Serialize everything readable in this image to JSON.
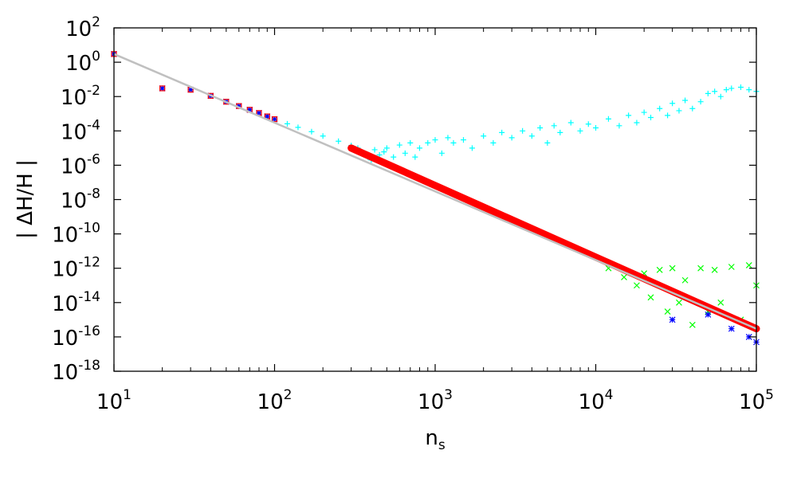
{
  "chart_data": {
    "type": "scatter",
    "title": "",
    "xlabel": {
      "base": "n",
      "sub": "s"
    },
    "ylabel": "| ΔH/H |",
    "x_scale": "log",
    "y_scale": "log",
    "xlim": [
      10,
      100000
    ],
    "ylim": [
      1e-18,
      100
    ],
    "grid": false,
    "legend": "none",
    "x_ticks": [
      {
        "base": "10",
        "exp": "1",
        "value": 10
      },
      {
        "base": "10",
        "exp": "2",
        "value": 100
      },
      {
        "base": "10",
        "exp": "3",
        "value": 1000
      },
      {
        "base": "10",
        "exp": "4",
        "value": 10000
      },
      {
        "base": "10",
        "exp": "5",
        "value": 100000
      }
    ],
    "y_ticks": [
      {
        "base": "10",
        "exp": "2",
        "value": 100
      },
      {
        "base": "10",
        "exp": "0",
        "value": 1
      },
      {
        "base": "10",
        "exp": "-2",
        "value": 0.01
      },
      {
        "base": "10",
        "exp": "-4",
        "value": 0.0001
      },
      {
        "base": "10",
        "exp": "-6",
        "value": 1e-06
      },
      {
        "base": "10",
        "exp": "-8",
        "value": 1e-08
      },
      {
        "base": "10",
        "exp": "-10",
        "value": 1e-10
      },
      {
        "base": "10",
        "exp": "-12",
        "value": 1e-12
      },
      {
        "base": "10",
        "exp": "-14",
        "value": 1e-14
      },
      {
        "base": "10",
        "exp": "-16",
        "value": 1e-16
      },
      {
        "base": "10",
        "exp": "-18",
        "value": 1e-18
      }
    ],
    "series": [
      {
        "marker": "plus",
        "color": "#00ffff",
        "points": [
          [
            10,
            3
          ],
          [
            20,
            0.03
          ],
          [
            30,
            0.025
          ],
          [
            40,
            0.011
          ],
          [
            50,
            0.005
          ],
          [
            60,
            0.0028
          ],
          [
            70,
            0.0017
          ],
          [
            80,
            0.0011
          ],
          [
            90,
            0.0007
          ],
          [
            100,
            0.00048
          ],
          [
            120,
            0.00026
          ],
          [
            140,
            0.00016
          ],
          [
            170,
            9e-05
          ],
          [
            200,
            5e-05
          ],
          [
            250,
            2.5e-05
          ],
          [
            300,
            1.4e-05
          ],
          [
            330,
            1e-05
          ],
          [
            350,
            5e-06
          ],
          [
            380,
            3e-06
          ],
          [
            400,
            2e-06
          ],
          [
            420,
            8e-06
          ],
          [
            450,
            4e-06
          ],
          [
            480,
            6e-06
          ],
          [
            500,
            1e-05
          ],
          [
            550,
            3e-06
          ],
          [
            600,
            1.5e-05
          ],
          [
            650,
            5e-06
          ],
          [
            700,
            2e-05
          ],
          [
            750,
            3e-06
          ],
          [
            800,
            1e-05
          ],
          [
            900,
            2e-05
          ],
          [
            1000,
            3e-05
          ],
          [
            1100,
            5e-06
          ],
          [
            1200,
            4e-05
          ],
          [
            1300,
            2e-05
          ],
          [
            1500,
            3e-05
          ],
          [
            1700,
            1e-05
          ],
          [
            2000,
            5e-05
          ],
          [
            2300,
            2e-05
          ],
          [
            2600,
            8e-05
          ],
          [
            3000,
            4e-05
          ],
          [
            3500,
            0.0001
          ],
          [
            4000,
            5e-05
          ],
          [
            4500,
            0.00015
          ],
          [
            5000,
            2e-05
          ],
          [
            5500,
            0.0002
          ],
          [
            6000,
            8e-05
          ],
          [
            7000,
            0.0003
          ],
          [
            8000,
            0.0001
          ],
          [
            9000,
            0.00025
          ],
          [
            10000,
            0.00015
          ],
          [
            12000,
            0.0005
          ],
          [
            14000,
            0.0002
          ],
          [
            16000,
            0.0008
          ],
          [
            18000,
            0.0003
          ],
          [
            20000,
            0.0012
          ],
          [
            22000,
            0.0006
          ],
          [
            25000,
            0.002
          ],
          [
            28000,
            0.0008
          ],
          [
            30000,
            0.004
          ],
          [
            33000,
            0.0015
          ],
          [
            36000,
            0.006
          ],
          [
            40000,
            0.002
          ],
          [
            45000,
            0.005
          ],
          [
            50000,
            0.015
          ],
          [
            55000,
            0.02
          ],
          [
            60000,
            0.01
          ],
          [
            65000,
            0.025
          ],
          [
            70000,
            0.03
          ],
          [
            80000,
            0.035
          ],
          [
            90000,
            0.025
          ],
          [
            100000,
            0.02
          ]
        ]
      },
      {
        "marker": "cross",
        "color": "#00ff00",
        "points": [
          [
            12000,
            1e-12
          ],
          [
            15000,
            3e-13
          ],
          [
            18000,
            1e-13
          ],
          [
            20000,
            5e-13
          ],
          [
            22000,
            2e-14
          ],
          [
            25000,
            8e-13
          ],
          [
            28000,
            3e-15
          ],
          [
            30000,
            1e-12
          ],
          [
            33000,
            1e-14
          ],
          [
            36000,
            2e-13
          ],
          [
            40000,
            5e-16
          ],
          [
            45000,
            1e-12
          ],
          [
            50000,
            3e-15
          ],
          [
            55000,
            8e-13
          ],
          [
            60000,
            1e-14
          ],
          [
            70000,
            1.2e-12
          ],
          [
            80000,
            1e-15
          ],
          [
            90000,
            1.5e-12
          ],
          [
            100000,
            1e-13
          ]
        ]
      },
      {
        "marker": "star",
        "color": "#0000ff",
        "points": [
          [
            10,
            3
          ],
          [
            20,
            0.03
          ],
          [
            30,
            0.025
          ],
          [
            40,
            0.011
          ],
          [
            50,
            0.005
          ],
          [
            60,
            0.0028
          ],
          [
            70,
            0.0017
          ],
          [
            80,
            0.0011
          ],
          [
            90,
            0.0007
          ],
          [
            100,
            0.00048
          ],
          [
            30000,
            1e-15
          ],
          [
            50000,
            2e-15
          ],
          [
            70000,
            3e-16
          ],
          [
            90000,
            1e-16
          ],
          [
            100000,
            5e-17
          ]
        ]
      },
      {
        "marker": "square",
        "color": "#ff0000",
        "points": [
          [
            10,
            3
          ],
          [
            20,
            0.03
          ],
          [
            30,
            0.025
          ],
          [
            40,
            0.011
          ],
          [
            50,
            0.005
          ],
          [
            60,
            0.0028
          ],
          [
            70,
            0.0017
          ],
          [
            80,
            0.0011
          ],
          [
            90,
            0.0007
          ],
          [
            100,
            0.00048
          ]
        ]
      },
      {
        "marker": "band",
        "color": "#ff0000",
        "points": [
          [
            300,
            1e-05
          ],
          [
            100000,
            3e-16
          ]
        ]
      },
      {
        "marker": "line",
        "color": "#c0c0c0",
        "points": [
          [
            10,
            3
          ],
          [
            100000,
            3e-16
          ]
        ]
      }
    ]
  }
}
